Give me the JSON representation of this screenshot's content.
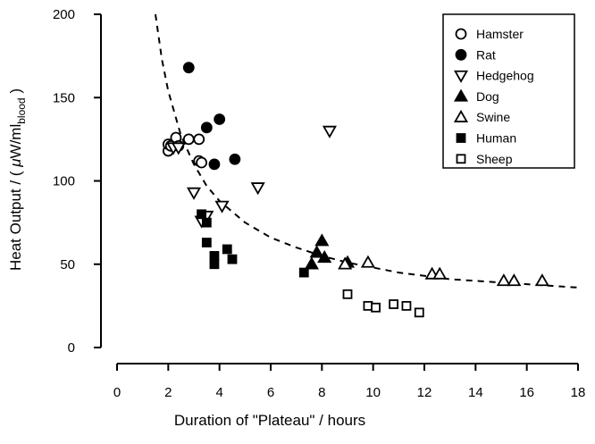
{
  "chart_data": {
    "type": "scatter",
    "xlabel": "Duration of \"Plateau\" / hours",
    "ylabel": {
      "prefix": "Heat Output / ( ",
      "mu": "μ",
      "unit": "W/ml",
      "subscript": "blood",
      "suffix": " )"
    },
    "xlim": [
      0,
      18
    ],
    "ylim": [
      0,
      200
    ],
    "xticks": [
      0,
      2,
      4,
      6,
      8,
      10,
      12,
      14,
      16,
      18
    ],
    "yticks": [
      0,
      50,
      100,
      150,
      200
    ],
    "grid": false,
    "legend_position": "top-right",
    "series": [
      {
        "name": "Hamster",
        "marker": "circle-open",
        "points": [
          [
            2.0,
            118
          ],
          [
            2.0,
            122
          ],
          [
            2.1,
            121
          ],
          [
            2.3,
            126
          ],
          [
            2.4,
            121
          ],
          [
            2.8,
            125
          ],
          [
            3.2,
            125
          ],
          [
            3.2,
            112
          ],
          [
            3.3,
            111
          ]
        ]
      },
      {
        "name": "Rat",
        "marker": "circle-filled",
        "points": [
          [
            2.8,
            168
          ],
          [
            3.5,
            132
          ],
          [
            3.8,
            110
          ],
          [
            4.0,
            137
          ],
          [
            4.6,
            113
          ]
        ]
      },
      {
        "name": "Hedgehog",
        "marker": "triangle-down-open",
        "points": [
          [
            2.2,
            120
          ],
          [
            2.4,
            120
          ],
          [
            3.0,
            93
          ],
          [
            3.3,
            76
          ],
          [
            3.5,
            79
          ],
          [
            4.1,
            85
          ],
          [
            5.5,
            96
          ],
          [
            8.3,
            130
          ]
        ]
      },
      {
        "name": "Dog",
        "marker": "triangle-up-filled",
        "points": [
          [
            7.6,
            50
          ],
          [
            7.8,
            57
          ],
          [
            8.0,
            64
          ],
          [
            8.1,
            54
          ],
          [
            9.0,
            51
          ]
        ]
      },
      {
        "name": "Swine",
        "marker": "triangle-up-open",
        "points": [
          [
            8.9,
            50
          ],
          [
            9.8,
            51
          ],
          [
            12.3,
            44
          ],
          [
            12.6,
            44
          ],
          [
            15.1,
            40
          ],
          [
            15.5,
            40
          ],
          [
            16.6,
            40
          ]
        ]
      },
      {
        "name": "Human",
        "marker": "square-filled",
        "points": [
          [
            3.3,
            80
          ],
          [
            3.5,
            75
          ],
          [
            3.5,
            63
          ],
          [
            3.8,
            55
          ],
          [
            3.8,
            50
          ],
          [
            4.3,
            59
          ],
          [
            4.5,
            53
          ],
          [
            7.3,
            45
          ]
        ]
      },
      {
        "name": "Sheep",
        "marker": "square-open",
        "points": [
          [
            9.0,
            32
          ],
          [
            9.8,
            25
          ],
          [
            10.1,
            24
          ],
          [
            10.8,
            26
          ],
          [
            11.3,
            25
          ],
          [
            11.8,
            21
          ]
        ]
      }
    ],
    "fit_curve": {
      "style": "dashed",
      "points": [
        [
          1.5,
          200
        ],
        [
          1.75,
          173
        ],
        [
          2.0,
          154
        ],
        [
          2.5,
          127
        ],
        [
          3.0,
          110
        ],
        [
          3.5,
          97
        ],
        [
          4.0,
          88
        ],
        [
          5.0,
          75
        ],
        [
          6.0,
          66
        ],
        [
          7.0,
          60
        ],
        [
          8.0,
          55
        ],
        [
          9.0,
          51
        ],
        [
          10.0,
          48
        ],
        [
          11.0,
          45
        ],
        [
          12.0,
          43
        ],
        [
          13.0,
          41
        ],
        [
          14.0,
          40
        ],
        [
          15.0,
          39
        ],
        [
          16.0,
          38
        ],
        [
          17.0,
          37
        ],
        [
          18.0,
          36
        ]
      ]
    }
  }
}
